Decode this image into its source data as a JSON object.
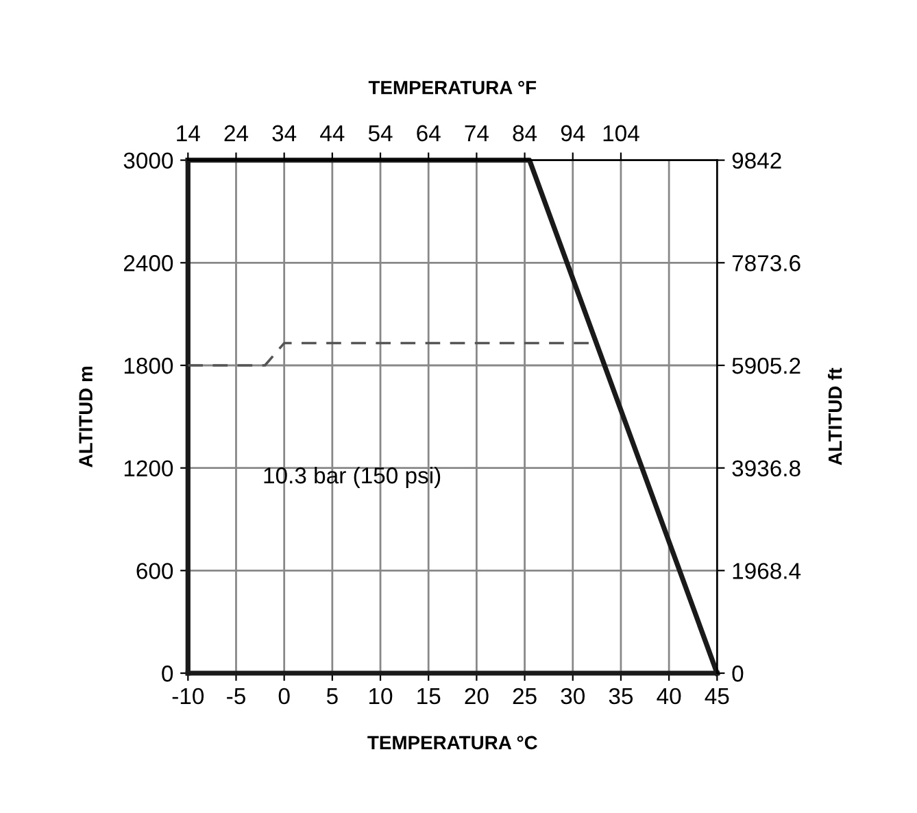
{
  "chart_data": {
    "type": "line",
    "title": "TEMPERATURA °F",
    "xlabel": "TEMPERATURA °C",
    "ylabel": "ALTITUD m",
    "y2label": "ALTITUD ft",
    "annotations": [
      "10.3 bar (150 psi)"
    ],
    "series": [
      {
        "x": [
          -10,
          25.5,
          45
        ],
        "values": [
          3000,
          3000,
          0
        ],
        "color": "#1a1a1a",
        "line_style": "solid"
      },
      {
        "x": [
          -10,
          -2,
          0,
          32
        ],
        "values": [
          1800,
          1800,
          1930,
          1930
        ],
        "color": "#555555",
        "line_style": "dashed"
      }
    ],
    "xlim": [
      -10,
      45
    ],
    "xticks": [
      -10,
      -5,
      0,
      5,
      10,
      15,
      20,
      25,
      30,
      35,
      40,
      45
    ],
    "ylim": [
      0,
      3000
    ],
    "yticks": [
      0,
      600,
      1200,
      1800,
      2400,
      3000
    ],
    "x2lim": [
      14,
      124
    ],
    "x2ticks": [
      14,
      24,
      34,
      44,
      54,
      64,
      74,
      84,
      94,
      104
    ],
    "y2lim": [
      0,
      9842
    ],
    "y2ticks": [
      0,
      1968.4,
      3936.8,
      5905.2,
      7873.6,
      9842
    ],
    "grid": true
  }
}
